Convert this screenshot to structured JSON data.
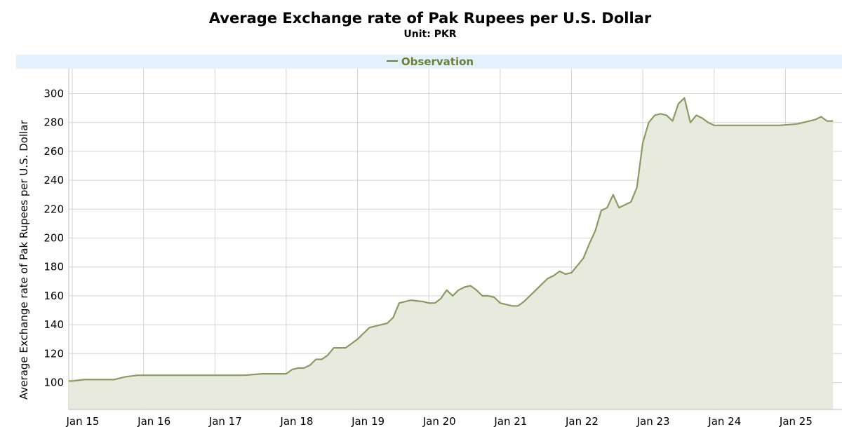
{
  "chart_data": {
    "type": "area",
    "title": "Average Exchange rate of Pak Rupees per U.S. Dollar",
    "subtitle": "Unit: PKR",
    "ylabel": "Average Exchange rate of Pak Rupees per U.S. Dollar",
    "xlabel": "",
    "legend": [
      "Observation"
    ],
    "legend_position": "top-center",
    "grid": true,
    "ylim": [
      82,
      310
    ],
    "yticks": [
      100,
      120,
      140,
      160,
      180,
      200,
      220,
      240,
      260,
      280,
      300
    ],
    "xlim": [
      "2014-12",
      "2025-09"
    ],
    "xticks": [
      {
        "date": "2015-01",
        "label": "Jan 15"
      },
      {
        "date": "2016-01",
        "label": "Jan 16"
      },
      {
        "date": "2017-01",
        "label": "Jan 17"
      },
      {
        "date": "2018-01",
        "label": "Jan 18"
      },
      {
        "date": "2019-01",
        "label": "Jan 19"
      },
      {
        "date": "2020-01",
        "label": "Jan 20"
      },
      {
        "date": "2021-01",
        "label": "Jan 21"
      },
      {
        "date": "2022-01",
        "label": "Jan 22"
      },
      {
        "date": "2023-01",
        "label": "Jan 23"
      },
      {
        "date": "2024-01",
        "label": "Jan 24"
      },
      {
        "date": "2025-01",
        "label": "Jan 25"
      }
    ],
    "colors": {
      "line": "#8c9a62",
      "fill": "#e7e9dc",
      "grid": "#d4d4d4",
      "legend_text": "#6b7f36",
      "legend_band": "#e4f0fb"
    },
    "series": [
      {
        "name": "Observation",
        "x": [
          "2014-12",
          "2015-01",
          "2015-03",
          "2015-06",
          "2015-08",
          "2015-10",
          "2015-12",
          "2016-01",
          "2016-06",
          "2017-01",
          "2017-06",
          "2017-09",
          "2017-12",
          "2018-01",
          "2018-02",
          "2018-03",
          "2018-04",
          "2018-05",
          "2018-06",
          "2018-07",
          "2018-08",
          "2018-09",
          "2018-10",
          "2018-11",
          "2019-01",
          "2019-02",
          "2019-03",
          "2019-04",
          "2019-05",
          "2019-06",
          "2019-07",
          "2019-08",
          "2019-10",
          "2019-12",
          "2020-01",
          "2020-02",
          "2020-03",
          "2020-04",
          "2020-05",
          "2020-06",
          "2020-07",
          "2020-08",
          "2020-09",
          "2020-10",
          "2020-11",
          "2020-12",
          "2021-01",
          "2021-03",
          "2021-04",
          "2021-05",
          "2021-06",
          "2021-07",
          "2021-08",
          "2021-09",
          "2021-10",
          "2021-11",
          "2021-12",
          "2022-01",
          "2022-02",
          "2022-03",
          "2022-04",
          "2022-05",
          "2022-06",
          "2022-07",
          "2022-08",
          "2022-09",
          "2022-10",
          "2022-11",
          "2022-12",
          "2023-01",
          "2023-02",
          "2023-03",
          "2023-04",
          "2023-05",
          "2023-06",
          "2023-07",
          "2023-08",
          "2023-09",
          "2023-10",
          "2023-11",
          "2023-12",
          "2024-01",
          "2024-03",
          "2024-06",
          "2024-09",
          "2024-12",
          "2025-03",
          "2025-06",
          "2025-07",
          "2025-08",
          "2025-09"
        ],
        "values": [
          101,
          101,
          102,
          102,
          102,
          104,
          105,
          105,
          105,
          105,
          105,
          106,
          106,
          106,
          109,
          110,
          110,
          112,
          116,
          116,
          119,
          124,
          124,
          124,
          130,
          134,
          138,
          139,
          140,
          141,
          145,
          155,
          157,
          156,
          155,
          155,
          158,
          164,
          160,
          164,
          166,
          167,
          164,
          160,
          160,
          159,
          155,
          153,
          153,
          156,
          160,
          164,
          168,
          172,
          174,
          177,
          175,
          176,
          181,
          186,
          196,
          205,
          219,
          221,
          230,
          221,
          223,
          225,
          235,
          266,
          280,
          285,
          286,
          285,
          281,
          293,
          297,
          280,
          285,
          283,
          280,
          278,
          278,
          278,
          278,
          278,
          279,
          282,
          284,
          281,
          281
        ]
      }
    ]
  }
}
